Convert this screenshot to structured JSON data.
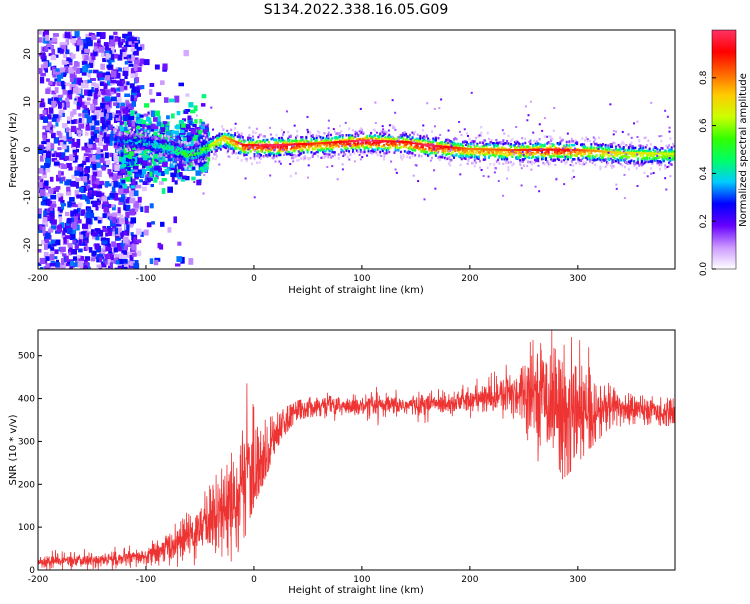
{
  "figure": {
    "title": "S134.2022.338.16.05.G09"
  },
  "colors": {
    "snr_line": "#ee3333",
    "axis": "#000000"
  },
  "chart_data": [
    {
      "type": "heatmap",
      "xlabel": "Height of straight line (km)",
      "ylabel": "Frequency (Hz)",
      "xlim": [
        -200,
        390
      ],
      "ylim": [
        -25,
        25
      ],
      "xticks": [
        "-200",
        "-100",
        "0",
        "100",
        "200",
        "300"
      ],
      "yticks": [
        "20",
        "10",
        "0",
        "-10",
        "-20"
      ],
      "colorbar": {
        "label": "Normalized spectral amplitude",
        "range": [
          0,
          1
        ],
        "ticks": [
          "0.0",
          "0.2",
          "0.4",
          "0.6",
          "0.8"
        ],
        "colors": [
          "#ffffff",
          "#cc99ff",
          "#6600ff",
          "#0000ff",
          "#00ccff",
          "#00ff66",
          "#33ff00",
          "#ccff00",
          "#ffcc00",
          "#ff6600",
          "#ff0000",
          "#ff3366"
        ]
      },
      "ridge": [
        {
          "x": -120,
          "y": 2.0,
          "a": 0.3
        },
        {
          "x": -100,
          "y": 1.5,
          "a": 0.35
        },
        {
          "x": -80,
          "y": 0.5,
          "a": 0.45
        },
        {
          "x": -60,
          "y": -1.0,
          "a": 0.5
        },
        {
          "x": -45,
          "y": 0.5,
          "a": 0.55
        },
        {
          "x": -28,
          "y": 2.5,
          "a": 0.7
        },
        {
          "x": -10,
          "y": 0.8,
          "a": 0.85
        },
        {
          "x": 20,
          "y": 0.8,
          "a": 0.95
        },
        {
          "x": 60,
          "y": 1.2,
          "a": 0.8
        },
        {
          "x": 100,
          "y": 1.8,
          "a": 0.95
        },
        {
          "x": 140,
          "y": 1.5,
          "a": 0.85
        },
        {
          "x": 160,
          "y": 0.8,
          "a": 0.95
        },
        {
          "x": 200,
          "y": 0.0,
          "a": 0.75
        },
        {
          "x": 240,
          "y": -0.2,
          "a": 0.8
        },
        {
          "x": 280,
          "y": -0.1,
          "a": 0.9
        },
        {
          "x": 310,
          "y": -0.3,
          "a": 0.75
        },
        {
          "x": 340,
          "y": -0.8,
          "a": 0.65
        },
        {
          "x": 390,
          "y": -1.0,
          "a": 0.6
        }
      ]
    },
    {
      "type": "line",
      "xlabel": "Height of straight line (km)",
      "ylabel": "SNR (10 * v/v)",
      "xlim": [
        -200,
        390
      ],
      "ylim": [
        0,
        560
      ],
      "xticks": [
        "-200",
        "-100",
        "0",
        "100",
        "200",
        "300"
      ],
      "yticks": [
        "0",
        "100",
        "200",
        "300",
        "400",
        "500"
      ],
      "series": [
        {
          "x": [
            -200,
            -150,
            -100,
            -80,
            -60,
            -40,
            -20,
            -10,
            0,
            10,
            20,
            30,
            40,
            60,
            100,
            150,
            200,
            230,
            250,
            270,
            290,
            310,
            330,
            350,
            390
          ],
          "y": [
            20,
            22,
            30,
            50,
            80,
            120,
            160,
            200,
            210,
            260,
            320,
            350,
            375,
            385,
            380,
            385,
            395,
            405,
            420,
            410,
            360,
            360,
            380,
            375,
            365
          ],
          "noise": [
            8,
            8,
            10,
            18,
            25,
            40,
            60,
            70,
            60,
            50,
            25,
            20,
            15,
            12,
            12,
            12,
            15,
            22,
            40,
            60,
            80,
            50,
            25,
            18,
            15
          ],
          "min": [
            0,
            0,
            0,
            5,
            10,
            15,
            20,
            60,
            150,
            210,
            280,
            320,
            350,
            360,
            320,
            340,
            350,
            330,
            260,
            180,
            220,
            280,
            330,
            340,
            335
          ],
          "max": [
            45,
            50,
            60,
            90,
            140,
            200,
            290,
            465,
            380,
            350,
            365,
            380,
            395,
            410,
            430,
            420,
            440,
            470,
            520,
            560,
            560,
            520,
            430,
            410,
            400
          ]
        }
      ]
    }
  ]
}
